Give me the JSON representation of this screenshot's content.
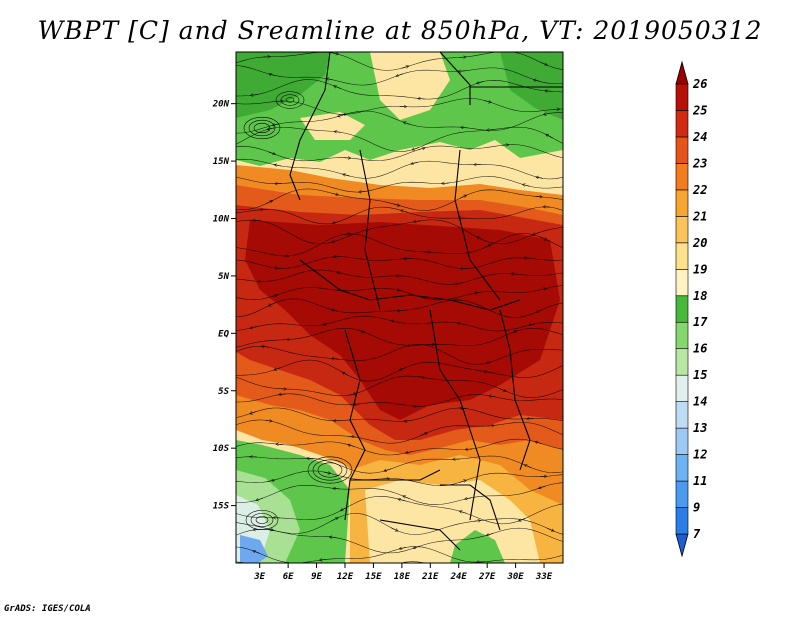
{
  "title": "WBPT [C] and Sreamline at 850hPa, VT: 2019050312",
  "footer": "GrADS: IGES/COLA",
  "map": {
    "lat_labels": [
      "20N",
      "15N",
      "10N",
      "5N",
      "EQ",
      "5S",
      "10S",
      "15S"
    ],
    "lat_values": [
      20,
      15,
      10,
      5,
      0,
      -5,
      -10,
      -15
    ],
    "lon_labels": [
      "3E",
      "6E",
      "9E",
      "12E",
      "15E",
      "18E",
      "21E",
      "24E",
      "27E",
      "30E",
      "33E"
    ],
    "lon_values": [
      3,
      6,
      9,
      12,
      15,
      18,
      21,
      24,
      27,
      30,
      33
    ],
    "lon_range": [
      0.5,
      35.0
    ],
    "lat_range": [
      -20.0,
      24.5
    ]
  },
  "colorbar": {
    "labels": [
      "7",
      "9",
      "11",
      "12",
      "13",
      "14",
      "15",
      "16",
      "17",
      "18",
      "19",
      "20",
      "21",
      "22",
      "23",
      "24",
      "25",
      "26"
    ],
    "colors": [
      "#1c5ed6",
      "#2b7ee8",
      "#4a9af0",
      "#6cb3f4",
      "#9ccaf5",
      "#bfdcf5",
      "#e1f0ee",
      "#b6e8a4",
      "#84d86e",
      "#48b83a",
      "#fff3c4",
      "#ffe08c",
      "#fbc45a",
      "#f7a430",
      "#f27c1e",
      "#e6541a",
      "#d22a12",
      "#b81008",
      "#9a0000"
    ]
  },
  "colors": {
    "deep": "#a50a04",
    "red": "#c62812",
    "orange_red": "#e35a1a",
    "orange": "#f08a22",
    "light_orange": "#f8b441",
    "tan": "#fde6a4",
    "green": "#5fc64c",
    "dark_green": "#3faa34",
    "light_green": "#a8e193",
    "pale": "#dcefe6",
    "blue": "#6ea8ef",
    "stream": "#000000"
  }
}
